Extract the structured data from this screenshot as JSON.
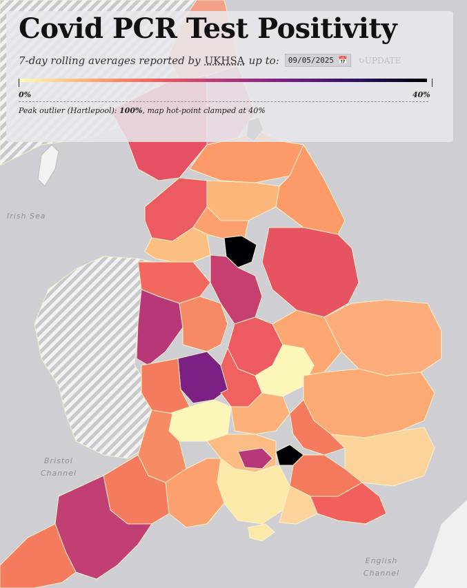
{
  "title": "Covid PCR Test Positivity",
  "subtitle": {
    "prefix": "7-day rolling averages reported by",
    "source_link": "UKHSA",
    "suffix": "up to:",
    "date_value": "09/05/2025",
    "calendar_icon": "calendar-icon",
    "update_label": "UPDATE",
    "update_icon": "refresh-icon"
  },
  "legend": {
    "min_label": "0%",
    "max_label": "40%",
    "colors": [
      "#fcfdbf",
      "#feb078",
      "#f1605d",
      "#b5367a",
      "#721f81",
      "#2c115f",
      "#000004"
    ]
  },
  "note": {
    "prefix": "Peak outlier (Hartlepool):",
    "value": "100%",
    "suffix": ", map hot-point clamped at",
    "clamp": "40%"
  },
  "sea_labels": [
    "Irish Sea",
    "Bristol Channel",
    "English Channel"
  ],
  "colors": {
    "background": "#cfcfd3",
    "panel": "#e8e8ec",
    "border": "#f4f0c8"
  }
}
